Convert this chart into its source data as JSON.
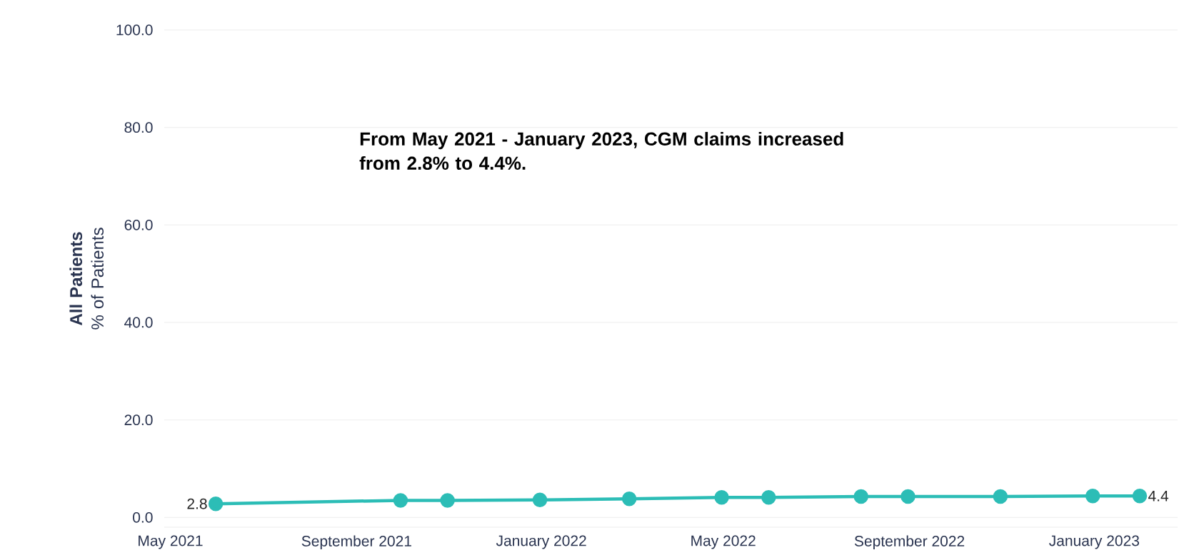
{
  "chart_data": {
    "type": "line",
    "ylabel": "**All Patients** % of Patients",
    "annotations": [
      "From May 2021 - January 2023, CGM claims increased from 2.8% to 4.4%."
    ],
    "x": [
      "2021-05-31",
      "2021-09-30",
      "2021-10-31",
      "2021-12-31",
      "2022-02-28",
      "2022-04-30",
      "2022-05-31",
      "2022-07-31",
      "2022-08-31",
      "2022-10-31",
      "2022-12-31",
      "2023-01-31"
    ],
    "series": [
      {
        "color": "#2cbdb6",
        "values": [
          2.8,
          3.5,
          3.5,
          3.6,
          3.8,
          4.1,
          4.1,
          4.3,
          4.3,
          4.3,
          4.4,
          4.4
        ],
        "value_labels": [
          "2.8",
          null,
          null,
          null,
          null,
          null,
          null,
          null,
          null,
          null,
          null,
          "4.4"
        ]
      }
    ],
    "xlim": [
      "2021-04-27",
      "2023-02-25"
    ],
    "xticks": [
      {
        "value": "2021-05-01",
        "label": "May 2021"
      },
      {
        "value": "2021-09-01",
        "label": "September 2021"
      },
      {
        "value": "2022-01-01",
        "label": "January 2022"
      },
      {
        "value": "2022-05-01",
        "label": "May 2022"
      },
      {
        "value": "2022-09-01",
        "label": "September 2022"
      },
      {
        "value": "2023-01-01",
        "label": "January 2023"
      }
    ],
    "ylim": [
      -2,
      100
    ],
    "yticks": [
      {
        "value": 0,
        "label": "0.0"
      },
      {
        "value": 20,
        "label": "20.0"
      },
      {
        "value": 40,
        "label": "40.0"
      },
      {
        "value": 60,
        "label": "60.0"
      },
      {
        "value": 80,
        "label": "80.0"
      },
      {
        "value": 100,
        "label": "100.0"
      }
    ],
    "grid": "y",
    "marker": "circle",
    "line_style": "solid"
  }
}
